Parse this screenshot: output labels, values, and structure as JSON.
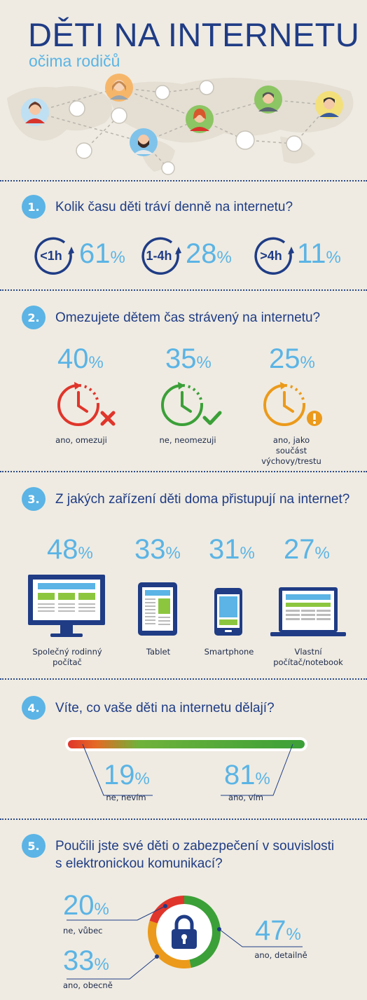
{
  "header": {
    "title": "DĚTI NA INTERNETU",
    "subtitle": "očima rodičů"
  },
  "colors": {
    "navy": "#1f3c85",
    "sky": "#5bb4e5",
    "red": "#e0352b",
    "green": "#3ba038",
    "orange": "#eb9a1b",
    "background": "#efebe2"
  },
  "q1": {
    "number": "1.",
    "text": "Kolik času děti tráví denně na internetu?",
    "items": [
      {
        "icon_label": "<1h",
        "value": "61",
        "unit": "%"
      },
      {
        "icon_label": "1-4h",
        "value": "28",
        "unit": "%"
      },
      {
        "icon_label": ">4h",
        "value": "11",
        "unit": "%"
      }
    ]
  },
  "q2": {
    "number": "2.",
    "text": "Omezujete dětem čas strávený na internetu?",
    "items": [
      {
        "value": "40",
        "unit": "%",
        "label": "ano, omezuji",
        "icon": "clock-cross-icon"
      },
      {
        "value": "35",
        "unit": "%",
        "label": "ne, neomezuji",
        "icon": "clock-check-icon"
      },
      {
        "value": "25",
        "unit": "%",
        "label": "ano, jako součást výchovy/trestu",
        "icon": "clock-warning-icon"
      }
    ]
  },
  "q3": {
    "number": "3.",
    "text": "Z jakých zařízení děti doma přistupují na internet?",
    "items": [
      {
        "value": "48",
        "unit": "%",
        "label": "Společný rodinný počítač",
        "icon": "desktop-monitor-icon"
      },
      {
        "value": "33",
        "unit": "%",
        "label": "Tablet",
        "icon": "tablet-icon"
      },
      {
        "value": "31",
        "unit": "%",
        "label": "Smartphone",
        "icon": "smartphone-icon"
      },
      {
        "value": "27",
        "unit": "%",
        "label": "Vlastní počítač/notebook",
        "icon": "laptop-icon"
      }
    ]
  },
  "q4": {
    "number": "4.",
    "text": "Víte, co vaše děti na internetu dělají?",
    "items": [
      {
        "value": "19",
        "unit": "%",
        "label": "ne, nevím"
      },
      {
        "value": "81",
        "unit": "%",
        "label": "ano, vím"
      }
    ]
  },
  "q5": {
    "number": "5.",
    "text_line1": "Poučili jste své děti o zabezpečení v souvislosti",
    "text_line2": "s elektronickou komunikací?",
    "items": [
      {
        "value": "20",
        "unit": "%",
        "label": "ne, vůbec",
        "color": "#e0352b"
      },
      {
        "value": "33",
        "unit": "%",
        "label": "ano, obecně",
        "color": "#eb9a1b"
      },
      {
        "value": "47",
        "unit": "%",
        "label": "ano, detailně",
        "color": "#3ba038"
      }
    ]
  }
}
